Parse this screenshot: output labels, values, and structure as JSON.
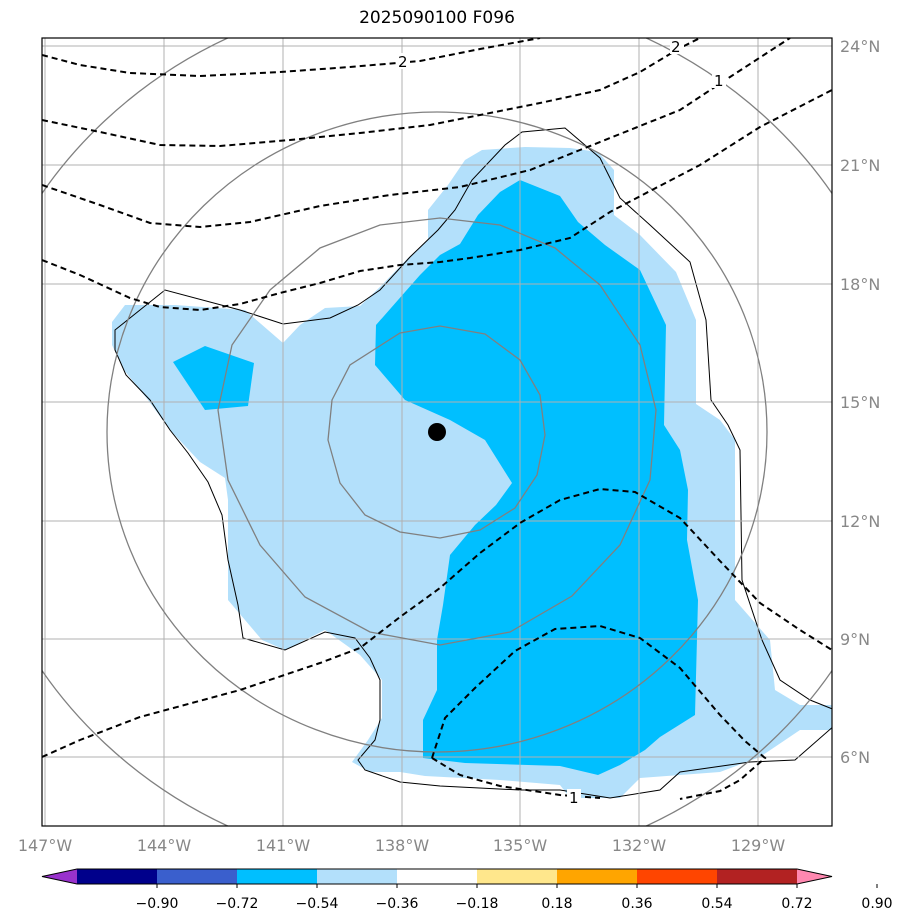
{
  "title": "2025090100 F096",
  "map": {
    "lon_range": [
      -147.2,
      -128.2
    ],
    "lat_range": [
      4.2,
      24.5
    ],
    "lon_ticks": [
      {
        "value": -147,
        "label": "147°W"
      },
      {
        "value": -144,
        "label": "144°W"
      },
      {
        "value": -141,
        "label": "141°W"
      },
      {
        "value": -138,
        "label": "138°W"
      },
      {
        "value": -135,
        "label": "135°W"
      },
      {
        "value": -132,
        "label": "132°W"
      },
      {
        "value": -129,
        "label": "129°W"
      }
    ],
    "lat_ticks": [
      {
        "value": 24,
        "label": "24°N"
      },
      {
        "value": 21,
        "label": "21°N"
      },
      {
        "value": 18,
        "label": "18°N"
      },
      {
        "value": 15,
        "label": "15°N"
      },
      {
        "value": 12,
        "label": "12°N"
      },
      {
        "value": 9,
        "label": "9°N"
      },
      {
        "value": 6,
        "label": "6°N"
      }
    ],
    "storm_center": {
      "lon": -137.1,
      "lat": 14.3
    },
    "dashed_contour_labels": [
      {
        "text": "2",
        "lon": -138.0,
        "lat": 23.6
      },
      {
        "text": "2",
        "lon": -131.0,
        "lat": 24.0
      },
      {
        "text": "1",
        "lon": -130.1,
        "lat": 22.9
      },
      {
        "text": "1",
        "lon": -133.8,
        "lat": 4.9
      }
    ],
    "colors": {
      "light_fill": "#b3e0fb",
      "medium_fill": "#00bfff",
      "grid": "#b0b0b0",
      "range_rings": "#808080"
    }
  },
  "colorbar": {
    "tick_labels": [
      "−0.90",
      "−0.72",
      "−0.54",
      "−0.36",
      "−0.18",
      "0.18",
      "0.36",
      "0.54",
      "0.72",
      "0.90"
    ],
    "colors": [
      "#9932cc",
      "#00008b",
      "#3a5fcd",
      "#00bfff",
      "#b3e0fb",
      "#ffffff",
      "#ffe78c",
      "#ffa500",
      "#ff4500",
      "#b22222",
      "#ff88b0"
    ]
  }
}
